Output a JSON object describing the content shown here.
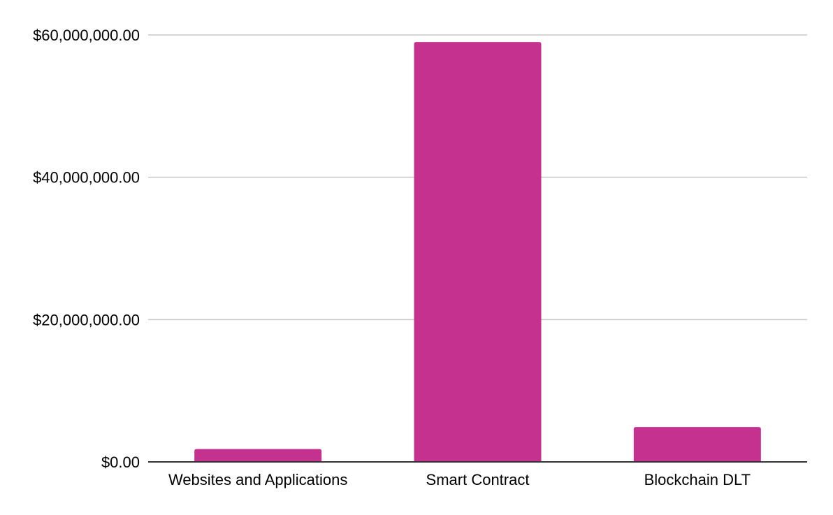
{
  "chart_data": {
    "type": "bar",
    "title": "",
    "xlabel": "",
    "ylabel": "",
    "categories": [
      "Websites and Applications",
      "Smart Contract",
      "Blockchain DLT"
    ],
    "values": [
      1800000,
      59000000,
      4900000
    ],
    "ylim": [
      0,
      60000000
    ],
    "yticks": [
      0,
      20000000,
      40000000,
      60000000
    ],
    "ytick_labels": [
      "$0.00",
      "$20,000,000.00",
      "$40,000,000.00",
      "$60,000,000.00"
    ],
    "grid": true,
    "legend": "none",
    "bar_color": "#c5318f"
  }
}
